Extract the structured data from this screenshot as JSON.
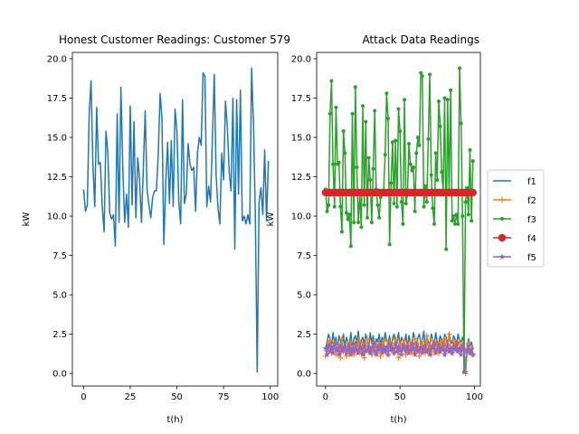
{
  "chart_data": [
    {
      "type": "line",
      "title": "Honest Customer Readings: Customer 579",
      "xlabel": "t(h)",
      "ylabel": "kW",
      "xlim": [
        -6,
        104
      ],
      "ylim": [
        -0.8,
        20.4
      ],
      "xticks": [
        0,
        25,
        50,
        75,
        100
      ],
      "yticks": [
        0.0,
        2.5,
        5.0,
        7.5,
        10.0,
        12.5,
        15.0,
        17.5,
        20.0
      ],
      "ytick_labels": [
        "0.0",
        "2.5",
        "5.0",
        "7.5",
        "10.0",
        "12.5",
        "15.0",
        "17.5",
        "20.0"
      ],
      "xtick_labels": [
        "0",
        "25",
        "50",
        "75",
        "100"
      ],
      "series": [
        {
          "color": "#1f77b4",
          "x": [
            0,
            1,
            2,
            3,
            4,
            5,
            6,
            7,
            8,
            9,
            10,
            11,
            12,
            13,
            14,
            15,
            16,
            17,
            18,
            19,
            20,
            21,
            22,
            23,
            24,
            25,
            26,
            27,
            28,
            29,
            30,
            31,
            32,
            33,
            34,
            35,
            36,
            37,
            38,
            39,
            40,
            41,
            42,
            43,
            44,
            45,
            46,
            47,
            48,
            49,
            50,
            51,
            52,
            53,
            54,
            55,
            56,
            57,
            58,
            59,
            60,
            61,
            62,
            63,
            64,
            65,
            66,
            67,
            68,
            69,
            70,
            71,
            72,
            73,
            74,
            75,
            76,
            77,
            78,
            79,
            80,
            81,
            82,
            83,
            84,
            85,
            86,
            87,
            88,
            89,
            90,
            91,
            92,
            93,
            94,
            95,
            96,
            97,
            98,
            99
          ],
          "y": [
            11.7,
            10.3,
            10.7,
            16.5,
            18.6,
            13.3,
            10.6,
            16.9,
            13.3,
            13.4,
            10.6,
            9.0,
            15.4,
            14.0,
            10.2,
            9.8,
            10.1,
            8.1,
            16.5,
            9.6,
            18.2,
            13.1,
            9.6,
            11.4,
            9.3,
            17.0,
            10.7,
            16.0,
            9.9,
            13.7,
            12.3,
            9.6,
            13.0,
            16.7,
            11.7,
            10.7,
            9.9,
            11.2,
            11.6,
            11.6,
            13.9,
            17.8,
            16.2,
            8.2,
            12.1,
            14.7,
            10.8,
            14.8,
            10.6,
            16.8,
            15.4,
            10.9,
            9.5,
            17.4,
            10.8,
            11.4,
            14.6,
            13.3,
            12.9,
            13.1,
            10.3,
            14.0,
            15.0,
            14.5,
            19.1,
            18.9,
            10.6,
            11.9,
            10.9,
            14.9,
            19.0,
            12.6,
            10.5,
            9.5,
            14.0,
            12.3,
            17.3,
            15.7,
            12.8,
            11.6,
            17.5,
            7.9,
            17.4,
            11.4,
            18.0,
            9.7,
            10.0,
            9.5,
            10.1,
            9.5,
            19.4,
            15.9,
            10.0,
            0.1,
            10.9,
            11.8,
            10.1,
            14.2,
            9.7,
            13.5
          ]
        }
      ]
    },
    {
      "type": "line",
      "title": "Attack Data Readings",
      "xlabel": "t(h)",
      "ylabel": "kW",
      "xlim": [
        -6,
        104
      ],
      "ylim": [
        -0.8,
        20.4
      ],
      "xticks": [
        0,
        50,
        100
      ],
      "xtick_labels": [
        "0",
        "50",
        "100"
      ],
      "yticks": [
        0.0,
        2.5,
        5.0,
        7.5,
        10.0,
        12.5,
        15.0,
        17.5,
        20.0
      ],
      "ytick_labels": [
        "0.0",
        "2.5",
        "5.0",
        "7.5",
        "10.0",
        "12.5",
        "15.0",
        "17.5",
        "20.0"
      ],
      "legend_position": "outside-right",
      "series": [
        {
          "name": "f1",
          "color": "#1f77b4",
          "marker": "none",
          "y": [
            1.5,
            2.0,
            2.5,
            2.2,
            1.8,
            2.6,
            1.9,
            2.3,
            1.4,
            2.4,
            2.1,
            1.7,
            2.5,
            1.6,
            2.3,
            2.0,
            1.8,
            2.6,
            1.5,
            2.2,
            2.4,
            1.9,
            2.7,
            1.6,
            2.1,
            2.3,
            1.8,
            2.5,
            2.0,
            1.7,
            2.6,
            1.9,
            2.4,
            1.6,
            2.2,
            2.0,
            2.5,
            1.8,
            2.3,
            1.7,
            2.6,
            2.1,
            1.9,
            2.4,
            1.6,
            2.2,
            2.5,
            1.8,
            2.0,
            2.6,
            1.7,
            2.3,
            2.1,
            1.9,
            2.5,
            1.6,
            2.4,
            2.0,
            1.8,
            2.6,
            2.2,
            1.7,
            2.3,
            2.5,
            1.9,
            2.1,
            2.7,
            1.6,
            2.4,
            2.0,
            1.8,
            2.5,
            2.2,
            1.7,
            2.6,
            2.0,
            1.9,
            2.4,
            2.1,
            1.8,
            2.5,
            2.3,
            1.7,
            2.6,
            2.0,
            1.9,
            2.4,
            2.2,
            1.8,
            2.5,
            2.1,
            2.0,
            2.3,
            1.9,
            0.1,
            1.6,
            2.2,
            1.8,
            2.0,
            1.5
          ]
        },
        {
          "name": "f2",
          "color": "#ff7f0e",
          "marker": "plus",
          "y": [
            1.1,
            1.4,
            1.9,
            2.1,
            1.3,
            1.6,
            2.0,
            1.2,
            1.8,
            1.5,
            1.0,
            2.2,
            1.4,
            1.7,
            1.1,
            1.9,
            1.3,
            2.0,
            1.6,
            1.2,
            1.8,
            1.4,
            2.1,
            1.5,
            1.3,
            1.9,
            1.0,
            1.7,
            2.2,
            1.4,
            1.6,
            1.2,
            2.0,
            1.5,
            1.8,
            1.3,
            1.9,
            1.1,
            1.7,
            2.1,
            1.4,
            1.6,
            1.2,
            2.0,
            1.5,
            1.8,
            1.3,
            2.2,
            1.6,
            1.0,
            1.9,
            1.4,
            1.7,
            2.1,
            1.2,
            1.8,
            1.5,
            2.0,
            1.3,
            1.6,
            2.2,
            1.4,
            1.9,
            1.1,
            1.7,
            2.0,
            1.5,
            1.3,
            2.4,
            1.6,
            1.8,
            1.2,
            2.1,
            1.4,
            1.9,
            1.6,
            1.3,
            2.0,
            1.7,
            1.5,
            2.2,
            1.4,
            1.8,
            2.5,
            1.6,
            1.3,
            2.1,
            1.7,
            1.5,
            1.9,
            2.0,
            1.4,
            1.8,
            1.6,
            0.0,
            1.5,
            1.9,
            1.3,
            1.6,
            1.2
          ]
        },
        {
          "name": "f3",
          "color": "#2ca02c",
          "marker": "point",
          "y": [
            11.7,
            10.3,
            10.7,
            16.5,
            18.6,
            13.3,
            10.6,
            16.9,
            13.3,
            13.4,
            10.6,
            9.0,
            15.4,
            14.0,
            10.2,
            9.8,
            10.1,
            8.1,
            16.5,
            9.6,
            18.2,
            13.1,
            9.6,
            11.4,
            9.3,
            17.0,
            10.7,
            16.0,
            9.9,
            13.7,
            12.3,
            9.6,
            13.0,
            16.7,
            11.7,
            10.7,
            9.9,
            11.2,
            11.6,
            11.6,
            13.9,
            17.8,
            16.2,
            8.2,
            12.1,
            14.7,
            10.8,
            14.8,
            10.6,
            16.8,
            15.4,
            10.9,
            9.5,
            17.4,
            10.8,
            11.4,
            14.6,
            13.3,
            12.9,
            13.1,
            10.3,
            14.0,
            15.0,
            14.5,
            19.1,
            18.9,
            10.6,
            11.9,
            10.9,
            14.9,
            19.0,
            12.6,
            10.5,
            9.5,
            14.0,
            12.3,
            17.3,
            15.7,
            12.8,
            11.6,
            17.5,
            7.9,
            17.4,
            11.4,
            18.0,
            9.7,
            10.0,
            9.5,
            10.1,
            9.5,
            19.4,
            15.9,
            10.0,
            0.1,
            10.9,
            11.8,
            10.1,
            14.2,
            9.7,
            13.5
          ]
        },
        {
          "name": "f4",
          "color": "#d62728",
          "marker": "circle",
          "y_const": 11.5
        },
        {
          "name": "f5",
          "color": "#9467bd",
          "marker": "star",
          "y": [
            1.6,
            1.2,
            1.8,
            1.4,
            1.7,
            1.3,
            1.9,
            1.5,
            1.6,
            1.2,
            1.8,
            1.4,
            1.6,
            1.7,
            1.3,
            1.5,
            1.8,
            1.2,
            1.6,
            1.4,
            1.9,
            1.5,
            1.3,
            1.7,
            1.6,
            1.2,
            1.8,
            1.4,
            1.5,
            1.7,
            1.3,
            1.6,
            1.9,
            1.4,
            1.2,
            1.7,
            1.5,
            1.8,
            1.3,
            1.6,
            1.4,
            1.7,
            1.2,
            1.8,
            1.5,
            1.6,
            1.3,
            1.9,
            1.4,
            1.7,
            1.5,
            1.2,
            1.8,
            1.6,
            1.4,
            1.7,
            1.3,
            1.5,
            1.9,
            1.6,
            1.2,
            1.8,
            1.4,
            1.5,
            1.7,
            1.3,
            1.6,
            1.8,
            1.4,
            1.5,
            1.2,
            1.7,
            1.6,
            1.9,
            1.3,
            1.5,
            1.8,
            1.4,
            1.6,
            1.7,
            1.2,
            1.5,
            1.8,
            1.4,
            1.6,
            1.3,
            1.7,
            1.5,
            1.9,
            1.4,
            1.6,
            1.2,
            1.8,
            1.5,
            0.1,
            1.4,
            1.7,
            1.3,
            1.5,
            1.2
          ]
        }
      ]
    }
  ]
}
